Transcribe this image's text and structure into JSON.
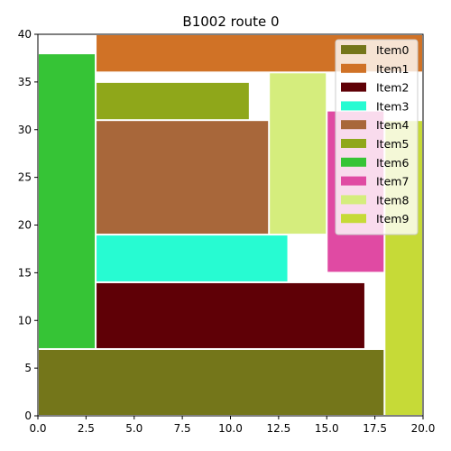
{
  "chart_data": {
    "type": "rectangle-packing",
    "title": "B1002 route 0",
    "xlim": [
      0,
      20
    ],
    "ylim": [
      0,
      40
    ],
    "xticks": [
      0,
      2.5,
      5,
      7.5,
      10,
      12.5,
      15,
      17.5,
      20
    ],
    "xtick_labels": [
      "0.0",
      "2.5",
      "5.0",
      "7.5",
      "10.0",
      "12.5",
      "15.0",
      "17.5",
      "20.0"
    ],
    "yticks": [
      0,
      5,
      10,
      15,
      20,
      25,
      30,
      35,
      40
    ],
    "ytick_labels": [
      "0",
      "5",
      "10",
      "15",
      "20",
      "25",
      "30",
      "35",
      "40"
    ],
    "grid": false,
    "legend_position": "top-right",
    "items": [
      {
        "name": "Item0",
        "color": "#74761a",
        "x0": 0,
        "y0": 0,
        "x1": 18,
        "y1": 7
      },
      {
        "name": "Item1",
        "color": "#d07226",
        "x0": 3,
        "y0": 36,
        "x1": 20,
        "y1": 40
      },
      {
        "name": "Item2",
        "color": "#5f0006",
        "x0": 3,
        "y0": 7,
        "x1": 17,
        "y1": 14
      },
      {
        "name": "Item3",
        "color": "#27fbd2",
        "x0": 3,
        "y0": 14,
        "x1": 13,
        "y1": 19
      },
      {
        "name": "Item4",
        "color": "#a8673a",
        "x0": 3,
        "y0": 19,
        "x1": 12,
        "y1": 31
      },
      {
        "name": "Item5",
        "color": "#8fa71a",
        "x0": 3,
        "y0": 31,
        "x1": 11,
        "y1": 35
      },
      {
        "name": "Item6",
        "color": "#36c436",
        "x0": 0,
        "y0": 7,
        "x1": 3,
        "y1": 38
      },
      {
        "name": "Item7",
        "color": "#e04aa3",
        "x0": 15,
        "y0": 15,
        "x1": 18,
        "y1": 32
      },
      {
        "name": "Item8",
        "color": "#d5ed7d",
        "x0": 12,
        "y0": 19,
        "x1": 15,
        "y1": 36
      },
      {
        "name": "Item9",
        "color": "#c6da37",
        "x0": 18,
        "y0": 0,
        "x1": 20,
        "y1": 31
      }
    ]
  }
}
